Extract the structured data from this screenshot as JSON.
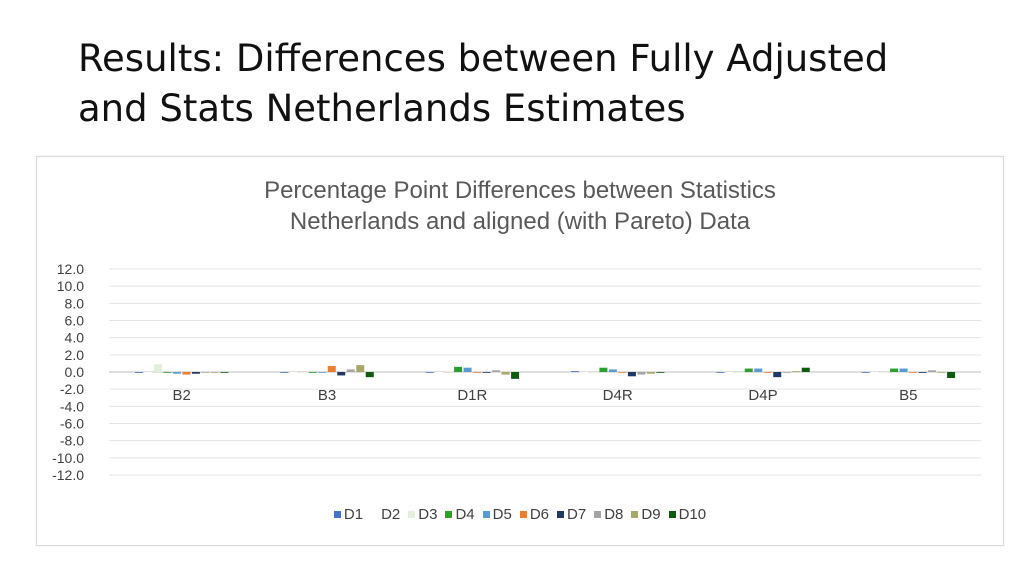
{
  "slide": {
    "title_line1": "Results: Differences between Fully Adjusted",
    "title_line2": "and Stats Netherlands Estimates"
  },
  "chart_data": {
    "type": "bar",
    "title": "Percentage Point Differences between Statistics Netherlands and aligned (with Pareto) Data",
    "title_line1": "Percentage Point Differences between Statistics",
    "title_line2": "Netherlands and aligned (with Pareto) Data",
    "xlabel": "",
    "ylabel": "",
    "ylim": [
      -12,
      12
    ],
    "yticks": [
      "12.0",
      "10.0",
      "8.0",
      "6.0",
      "4.0",
      "2.0",
      "0.0",
      "-2.0",
      "-4.0",
      "-6.0",
      "-8.0",
      "-10.0",
      "-12.0"
    ],
    "ytick_values": [
      12,
      10,
      8,
      6,
      4,
      2,
      0,
      -2,
      -4,
      -6,
      -8,
      -10,
      -12
    ],
    "grid": true,
    "legend_position": "bottom",
    "categories": [
      "B2",
      "B3",
      "D1R",
      "D4R",
      "D4P",
      "B5"
    ],
    "series": [
      {
        "name": "D1",
        "color": "#4472c4",
        "values": [
          -0.1,
          0.0,
          0.0,
          0.1,
          0.0,
          0.0
        ]
      },
      {
        "name": "D2",
        "color": "#ffffff",
        "values": [
          0.0,
          0.0,
          0.0,
          0.0,
          0.0,
          0.0
        ]
      },
      {
        "name": "D3",
        "color": "#e2efda",
        "values": [
          0.9,
          0.0,
          0.1,
          0.0,
          -0.1,
          0.0
        ]
      },
      {
        "name": "D4",
        "color": "#2e9e2e",
        "values": [
          0.0,
          -0.1,
          0.6,
          0.5,
          0.4,
          0.4
        ]
      },
      {
        "name": "D5",
        "color": "#5b9bd5",
        "values": [
          -0.2,
          0.0,
          0.5,
          0.3,
          0.4,
          0.4
        ]
      },
      {
        "name": "D6",
        "color": "#ed7d31",
        "values": [
          -0.3,
          0.7,
          0.0,
          0.0,
          0.0,
          0.0
        ]
      },
      {
        "name": "D7",
        "color": "#203864",
        "values": [
          -0.2,
          -0.4,
          0.0,
          -0.5,
          -0.6,
          -0.1
        ]
      },
      {
        "name": "D8",
        "color": "#a5a5a5",
        "values": [
          0.0,
          0.3,
          0.2,
          -0.3,
          0.0,
          0.2
        ]
      },
      {
        "name": "D9",
        "color": "#a9a86b",
        "values": [
          0.0,
          0.8,
          -0.3,
          -0.2,
          0.1,
          0.0
        ]
      },
      {
        "name": "D10",
        "color": "#0f5a0f",
        "values": [
          0.0,
          -0.6,
          -0.8,
          0.0,
          0.5,
          -0.7
        ]
      }
    ]
  }
}
